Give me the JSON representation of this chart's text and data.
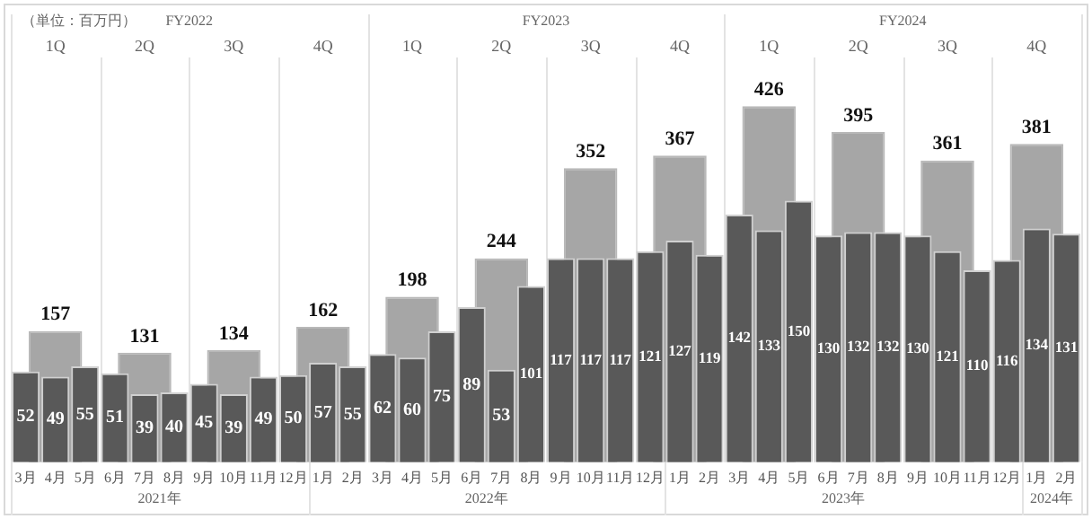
{
  "chart_data": {
    "type": "bar",
    "categories": [
      "3月",
      "4月",
      "5月",
      "6月",
      "7月",
      "8月",
      "9月",
      "10月",
      "11月",
      "12月",
      "1月",
      "2月",
      "3月",
      "4月",
      "5月",
      "6月",
      "7月",
      "8月",
      "9月",
      "10月",
      "11月",
      "12月",
      "1月",
      "2月",
      "3月",
      "4月",
      "5月",
      "6月",
      "7月",
      "8月",
      "9月",
      "10月",
      "11月",
      "12月",
      "1月",
      "2月"
    ],
    "series": [
      {
        "color": "#595959",
        "values": [
          52,
          49,
          55,
          51,
          39,
          40,
          45,
          39,
          49,
          50,
          57,
          55,
          62,
          60,
          75,
          89,
          53,
          101,
          117,
          117,
          117,
          121,
          127,
          119,
          142,
          133,
          150,
          130,
          132,
          132,
          130,
          121,
          110,
          116,
          134,
          131
        ]
      },
      {
        "color": "#a6a6a6",
        "axis": "y2",
        "values": [
          null,
          157,
          null,
          null,
          131,
          null,
          null,
          134,
          null,
          null,
          162,
          null,
          null,
          198,
          null,
          null,
          244,
          null,
          null,
          352,
          null,
          null,
          367,
          null,
          null,
          426,
          null,
          null,
          395,
          null,
          null,
          361,
          null,
          null,
          381,
          null
        ]
      }
    ],
    "ylim": [
      0,
      230
    ],
    "y2lim": [
      0,
      480
    ],
    "data_labels": true,
    "grid": false,
    "legend": false,
    "tick_labels": "x",
    "annotations": [
      "（単位：百万円）",
      "FY2022",
      "FY2023",
      "FY2024",
      "1Q",
      "2Q",
      "3Q",
      "4Q",
      "1Q",
      "2Q",
      "3Q",
      "4Q",
      "1Q",
      "2Q",
      "3Q",
      "4Q",
      "2021年",
      "2022年",
      "2023年",
      "2024年"
    ]
  }
}
